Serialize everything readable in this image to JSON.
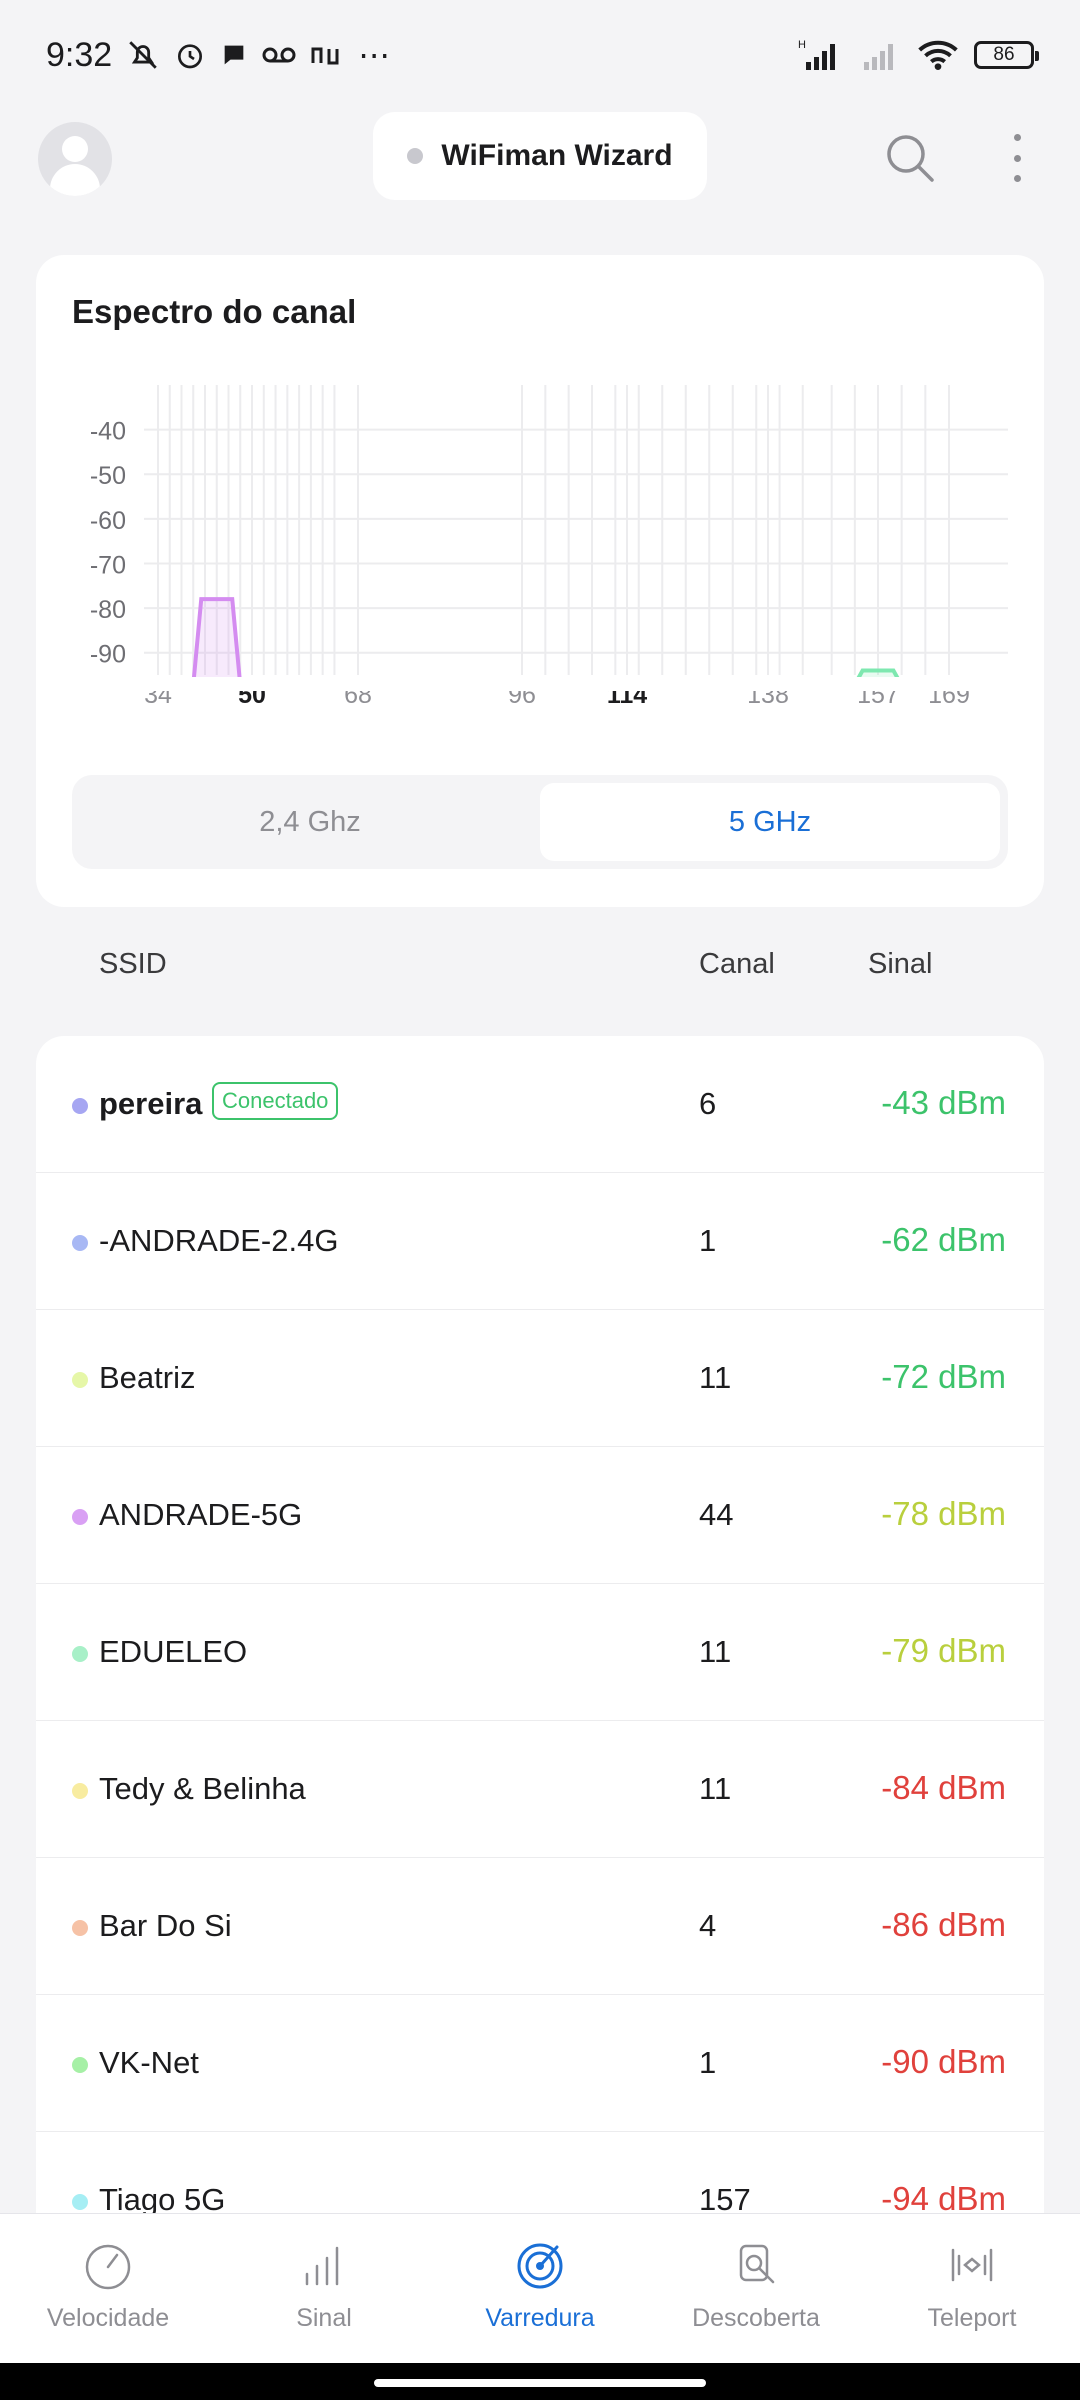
{
  "status": {
    "time": "9:32",
    "extra": "⋯",
    "network_h": "H",
    "battery": "86"
  },
  "header": {
    "title": "WiFiman Wizard",
    "icons": [
      "avatar-icon",
      "search-icon",
      "more-vertical-icon"
    ]
  },
  "spectrum": {
    "title": "Espectro do canal",
    "tabs": [
      {
        "label": "2,4 Ghz",
        "active": false
      },
      {
        "label": "5 GHz",
        "active": true
      }
    ]
  },
  "chart_data": {
    "type": "area",
    "title": "",
    "xlabel": "",
    "ylabel": "",
    "y_ticks": [
      -40,
      -50,
      -60,
      -70,
      -80,
      -90
    ],
    "ylim": [
      -95,
      -30
    ],
    "x_tick_labels": [
      {
        "label": "34",
        "channel": 34,
        "bold": false
      },
      {
        "label": "50",
        "channel": 50,
        "bold": true
      },
      {
        "label": "68",
        "channel": 68,
        "bold": false
      },
      {
        "label": "96",
        "channel": 96,
        "bold": false
      },
      {
        "label": "114",
        "channel": 114,
        "bold": true
      },
      {
        "label": "138",
        "channel": 138,
        "bold": false
      },
      {
        "label": "157",
        "channel": 157,
        "bold": false
      },
      {
        "label": "169",
        "channel": 169,
        "bold": false
      }
    ],
    "series": [
      {
        "channel": 44,
        "signal": -78,
        "color": "#d48cf0"
      },
      {
        "channel": 157,
        "signal": -94,
        "color": "#7ee8b0"
      }
    ]
  },
  "table": {
    "col_ssid": "SSID",
    "col_canal": "Canal",
    "col_sinal": "Sinal",
    "connected_label": "Conectado",
    "rows": [
      {
        "ssid": "pereira",
        "canal": "6",
        "sinal": "-43 dBm",
        "dot": "#a6a6f2",
        "color": "#3cc36b",
        "connected": true
      },
      {
        "ssid": "-ANDRADE-2.4G",
        "canal": "1",
        "sinal": "-62 dBm",
        "dot": "#a8b8f4",
        "color": "#3cc36b",
        "connected": false
      },
      {
        "ssid": "Beatriz",
        "canal": "11",
        "sinal": "-72 dBm",
        "dot": "#e6f7a8",
        "color": "#3cc36b",
        "connected": false
      },
      {
        "ssid": "ANDRADE-5G",
        "canal": "44",
        "sinal": "-78 dBm",
        "dot": "#d9a0f4",
        "color": "#b9cf3d",
        "connected": false
      },
      {
        "ssid": "EDUELEO",
        "canal": "11",
        "sinal": "-79 dBm",
        "dot": "#a8f0c8",
        "color": "#b9cf3d",
        "connected": false
      },
      {
        "ssid": "Tedy & Belinha",
        "canal": "11",
        "sinal": "-84 dBm",
        "dot": "#f8eca0",
        "color": "#e0413c",
        "connected": false
      },
      {
        "ssid": "Bar Do Si",
        "canal": "4",
        "sinal": "-86 dBm",
        "dot": "#f6c2a6",
        "color": "#e0413c",
        "connected": false
      },
      {
        "ssid": "VK-Net",
        "canal": "1",
        "sinal": "-90 dBm",
        "dot": "#a6f0a6",
        "color": "#e0413c",
        "connected": false
      },
      {
        "ssid": "Tiago 5G",
        "canal": "157",
        "sinal": "-94 dBm",
        "dot": "#a6eef4",
        "color": "#e0413c",
        "connected": false
      }
    ]
  },
  "nav": {
    "items": [
      {
        "label": "Velocidade",
        "icon": "speedometer-icon",
        "active": false
      },
      {
        "label": "Sinal",
        "icon": "signal-bars-icon",
        "active": false
      },
      {
        "label": "Varredura",
        "icon": "radar-icon",
        "active": true
      },
      {
        "label": "Descoberta",
        "icon": "device-search-icon",
        "active": false
      },
      {
        "label": "Teleport",
        "icon": "teleport-icon",
        "active": false
      }
    ],
    "accent": "#1a6fd6"
  }
}
